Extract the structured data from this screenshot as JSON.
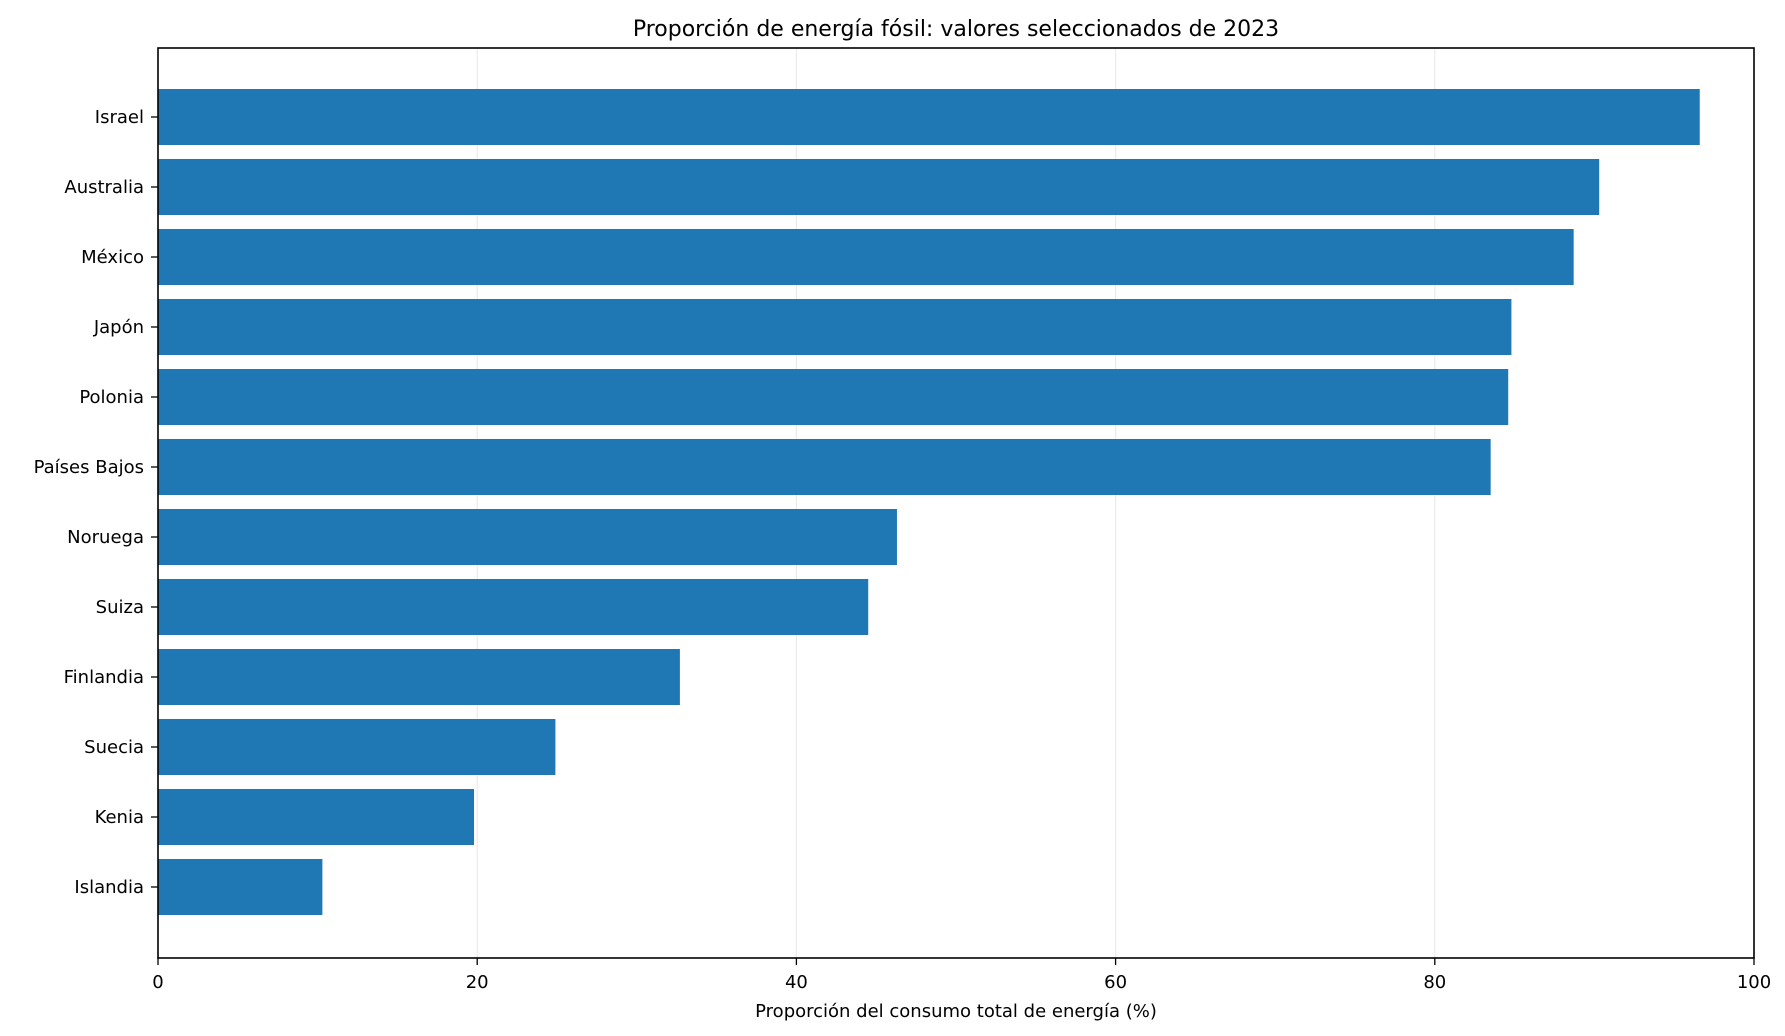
{
  "chart_data": {
    "type": "bar",
    "orientation": "horizontal",
    "title": "Proporción de energía fósil: valores seleccionados de 2023",
    "xlabel": "Proporción del consumo total de energía (%)",
    "ylabel": "",
    "xlim": [
      0,
      100
    ],
    "xticks": [
      0,
      20,
      40,
      60,
      80,
      100
    ],
    "grid": "vertical",
    "bar_color": "#1f77b4",
    "grid_color": "#ebebeb",
    "categories": [
      "Israel",
      "Australia",
      "México",
      "Japón",
      "Polonia",
      "Países Bajos",
      "Noruega",
      "Suiza",
      "Finlandia",
      "Suecia",
      "Kenia",
      "Islandia"
    ],
    "values": [
      96.6,
      90.3,
      88.7,
      84.8,
      84.6,
      83.5,
      46.3,
      44.5,
      32.7,
      24.9,
      19.8,
      10.3
    ]
  }
}
